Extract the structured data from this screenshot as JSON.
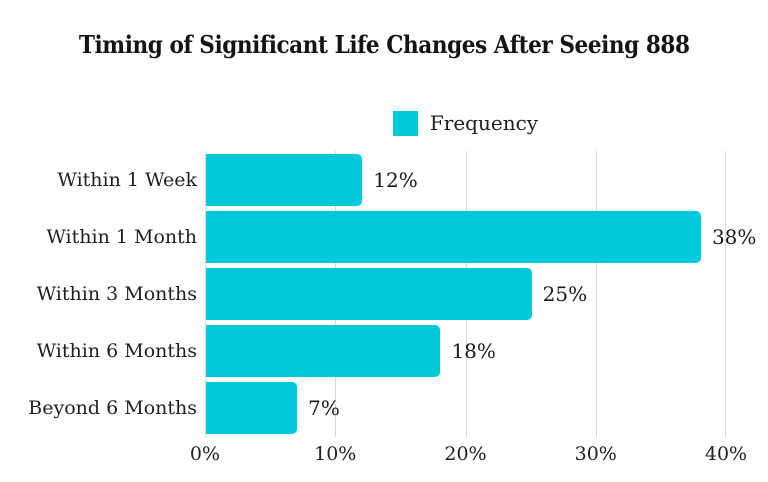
{
  "chart_title": "Timing of Significant Life Changes After Seeing 888",
  "legend": {
    "label": "Frequency",
    "swatch_color": "#00C9DB"
  },
  "colors": {
    "bar": "#00C9DB",
    "gridline": "#d9d9d9",
    "title_text": "#141414",
    "label_text": "#1f1f1f"
  },
  "chart_data": {
    "type": "bar",
    "orientation": "horizontal",
    "title": "Timing of Significant Life Changes After Seeing 888",
    "series": [
      {
        "name": "Frequency",
        "values": [
          12,
          38,
          25,
          18,
          7
        ]
      }
    ],
    "categories": [
      "Within 1 Week",
      "Within 1 Month",
      "Within 3 Months",
      "Within 6 Months",
      "Beyond 6 Months"
    ],
    "value_labels": [
      "12%",
      "38%",
      "25%",
      "18%",
      "7%"
    ],
    "xlabel": "",
    "ylabel": "",
    "xlim": [
      0,
      40
    ],
    "x_ticks": [
      "0%",
      "10%",
      "20%",
      "30%",
      "40%"
    ],
    "x_tick_values": [
      0,
      10,
      20,
      30,
      40
    ],
    "grid": "vertical",
    "legend_position": "top-center",
    "bar_color": "#00C9DB"
  }
}
